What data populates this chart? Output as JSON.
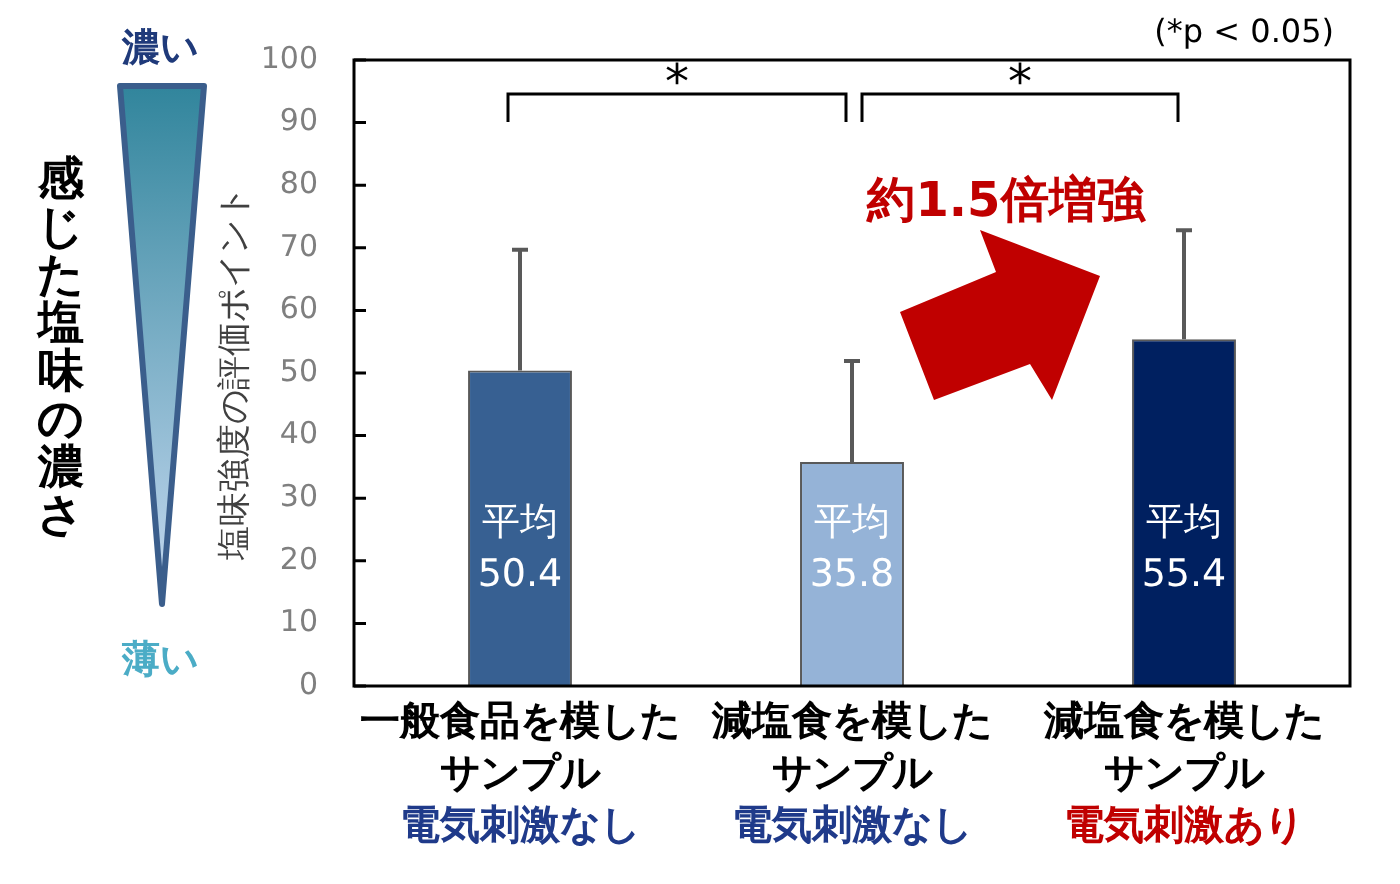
{
  "chart_data": {
    "type": "bar",
    "ylabel": "塩味強度の評価ポイント",
    "categories": [
      "一般食品を模したサンプル電気刺激なし",
      "減塩食を模したサンプル電気刺激なし",
      "減塩食を模したサンプル電気刺激あり"
    ],
    "values": [
      50.4,
      35.8,
      55.4
    ],
    "colors": [
      "#376092",
      "#95b3d7",
      "#002060"
    ],
    "errors": [
      [
        50.4,
        69.7
      ],
      [
        35.8,
        51.9
      ],
      [
        55.4,
        72.8
      ]
    ],
    "value_labels": [
      "平均\n50.4",
      "平均\n35.8",
      "平均\n55.4"
    ],
    "ylim": [
      0,
      100
    ],
    "yticks": [
      0,
      10,
      20,
      30,
      40,
      50,
      60,
      70,
      80,
      90,
      100
    ],
    "grid": false,
    "legend": false,
    "annotations": [
      "(*p < 0.05)",
      "*",
      "*",
      "約1.5倍増強",
      "感じた塩味の濃さ",
      "濃い",
      "薄い"
    ]
  }
}
